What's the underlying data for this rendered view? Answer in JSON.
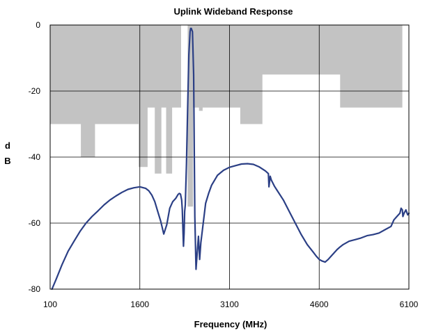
{
  "chart_data": {
    "type": "line",
    "title": "Uplink Wideband Response",
    "xlabel": "Frequency (MHz)",
    "ylabel_lines": [
      "d",
      "B"
    ],
    "xlim": [
      100,
      6100
    ],
    "ylim": [
      -80,
      0
    ],
    "x_ticks": [
      100,
      1600,
      3100,
      4600,
      6100
    ],
    "x_tick_labels": [
      "100",
      "1600",
      "3100",
      "4600",
      "6100"
    ],
    "y_ticks": [
      0,
      -20,
      -40,
      -60,
      -80
    ],
    "y_tick_labels": [
      "0",
      "-20",
      "-40",
      "-60",
      "-80"
    ],
    "grid": true,
    "legend": "none",
    "colors": {
      "line": "#2b3f85",
      "mask": "#c3c3c3",
      "grid": "#000000",
      "frame": "#000000"
    },
    "mask": {
      "name": "",
      "points": [
        [
          100,
          -30
        ],
        [
          614,
          -30
        ],
        [
          614,
          -40
        ],
        [
          850,
          -40
        ],
        [
          850,
          -30
        ],
        [
          1580,
          -30
        ],
        [
          1580,
          -43
        ],
        [
          1730,
          -43
        ],
        [
          1730,
          -25
        ],
        [
          1850,
          -25
        ],
        [
          1850,
          -45
        ],
        [
          1960,
          -45
        ],
        [
          1960,
          -25
        ],
        [
          2040,
          -25
        ],
        [
          2040,
          -45
        ],
        [
          2140,
          -45
        ],
        [
          2140,
          -25
        ],
        [
          2290,
          -25
        ],
        [
          2290,
          0
        ],
        [
          2400,
          0
        ],
        [
          2400,
          -55
        ],
        [
          2490,
          -55
        ],
        [
          2490,
          -25
        ],
        [
          2590,
          -25
        ],
        [
          2590,
          -26
        ],
        [
          2650,
          -26
        ],
        [
          2650,
          -25
        ],
        [
          3280,
          -25
        ],
        [
          3280,
          -30
        ],
        [
          3650,
          -30
        ],
        [
          3650,
          -15
        ],
        [
          4950,
          -15
        ],
        [
          4950,
          -25
        ],
        [
          5990,
          -25
        ],
        [
          5990,
          0
        ],
        [
          100,
          0
        ]
      ]
    },
    "series": [
      {
        "name": "",
        "x": [
          130,
          200,
          300,
          400,
          500,
          600,
          700,
          800,
          900,
          1000,
          1100,
          1200,
          1300,
          1400,
          1500,
          1600,
          1700,
          1750,
          1800,
          1850,
          1900,
          1950,
          1970,
          2000,
          2050,
          2100,
          2150,
          2200,
          2240,
          2260,
          2280,
          2300,
          2310,
          2320,
          2330,
          2340,
          2350,
          2360,
          2380,
          2400,
          2420,
          2440,
          2450,
          2460,
          2470,
          2480,
          2500,
          2520,
          2540,
          2560,
          2580,
          2600,
          2620,
          2650,
          2700,
          2750,
          2800,
          2900,
          3000,
          3100,
          3200,
          3300,
          3400,
          3500,
          3600,
          3700,
          3750,
          3760,
          3780,
          3800,
          3850,
          3900,
          4000,
          4100,
          4200,
          4300,
          4400,
          4500,
          4550,
          4600,
          4650,
          4700,
          4750,
          4800,
          4850,
          4900,
          4950,
          5000,
          5100,
          5200,
          5300,
          5400,
          5500,
          5600,
          5700,
          5800,
          5850,
          5900,
          5950,
          5970,
          5990,
          6000,
          6020,
          6050,
          6080,
          6100
        ],
        "y": [
          -80,
          -77,
          -72.5,
          -68.5,
          -65.5,
          -62.5,
          -60,
          -58,
          -56.3,
          -54.5,
          -53,
          -51.8,
          -50.7,
          -49.8,
          -49.3,
          -49,
          -49.5,
          -50.2,
          -51.5,
          -53.5,
          -56.5,
          -59.5,
          -61,
          -63.3,
          -60.5,
          -55.5,
          -53.5,
          -52.5,
          -51.3,
          -51,
          -51.2,
          -53,
          -56,
          -62,
          -67,
          -63,
          -56.5,
          -54.5,
          -42,
          -25,
          -9,
          -2,
          -1,
          -1,
          -1.5,
          -2,
          -15,
          -58,
          -74,
          -69,
          -64,
          -71,
          -66,
          -61.5,
          -54,
          -51,
          -48.5,
          -45.5,
          -44,
          -43.1,
          -42.6,
          -42.1,
          -42,
          -42.2,
          -43,
          -44.2,
          -45,
          -49,
          -45.8,
          -47,
          -48.8,
          -50.2,
          -53,
          -56.5,
          -60,
          -63.5,
          -66.5,
          -68.8,
          -70,
          -71,
          -71.5,
          -71.8,
          -71,
          -70,
          -69,
          -68,
          -67.2,
          -66.5,
          -65.5,
          -65,
          -64.5,
          -63.8,
          -63.5,
          -63,
          -62,
          -61,
          -59,
          -58,
          -57,
          -55.5,
          -56,
          -58,
          -57,
          -56,
          -57.5,
          -57
        ]
      }
    ]
  }
}
